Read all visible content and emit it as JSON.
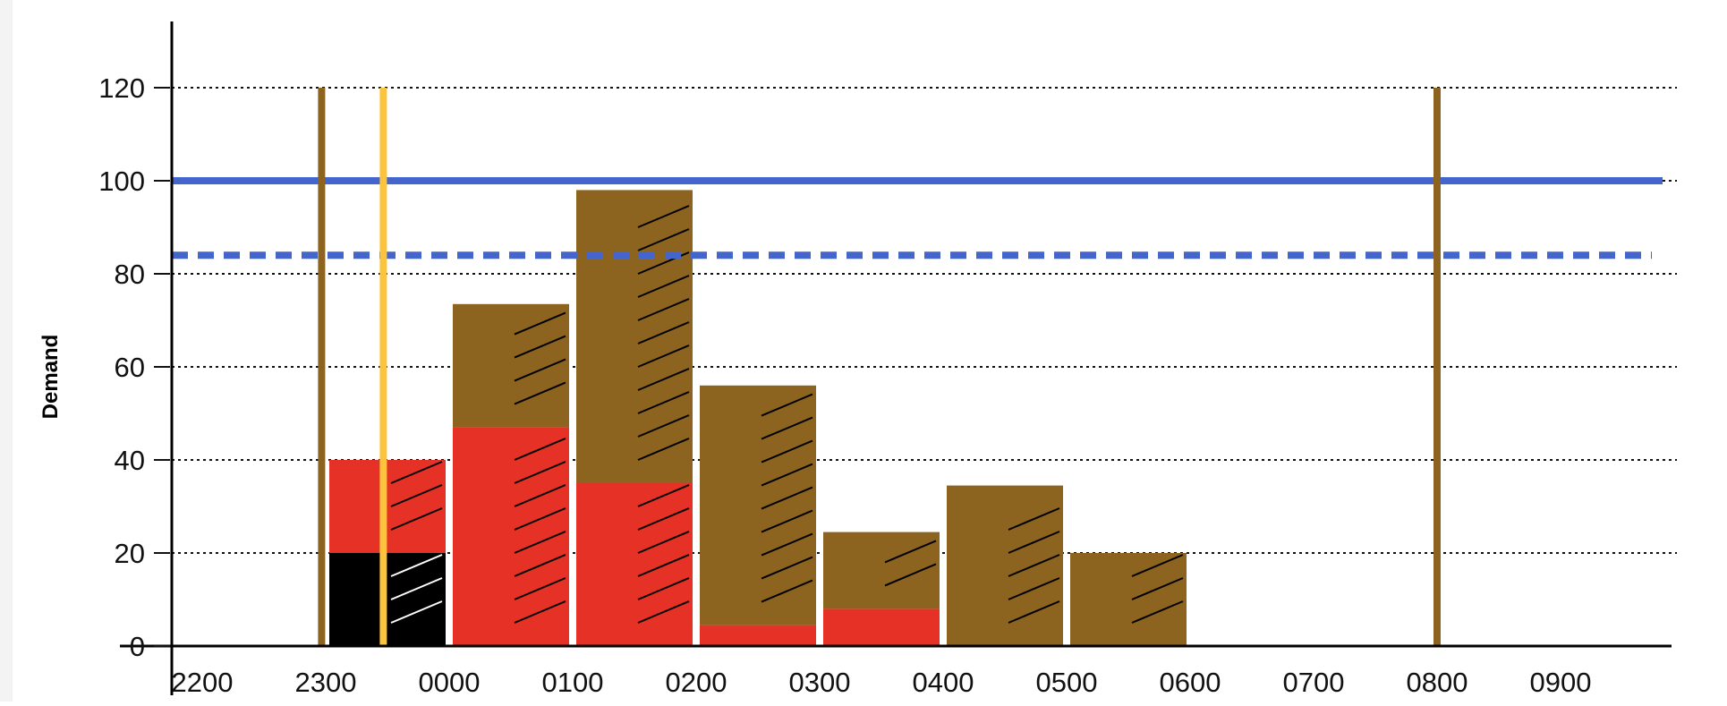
{
  "chart_data": {
    "type": "bar",
    "title": "",
    "xlabel": "",
    "ylabel": "Demand",
    "ylim": [
      0,
      120
    ],
    "y_ticks": [
      "0",
      "20",
      "40",
      "60",
      "80",
      "100",
      "120"
    ],
    "categories": [
      "2200",
      "2300",
      "0000",
      "0100",
      "0200",
      "0300",
      "0400",
      "0500",
      "0600",
      "0700",
      "0800",
      "0900"
    ],
    "grid": "horizontal dotted",
    "legend": "none",
    "stacked_bars": [
      {
        "start": "2300",
        "segments": [
          {
            "value": 20,
            "color": "#000000",
            "hatch_right_half": true,
            "hatch_color": "#ffffff"
          },
          {
            "value": 20,
            "color": "#e53126",
            "hatch_right_half": true,
            "hatch_color": "#000000"
          }
        ]
      },
      {
        "start": "0000",
        "segments": [
          {
            "value": 47,
            "color": "#e53126",
            "hatch_right_half": true,
            "hatch_color": "#000000"
          },
          {
            "value": 26.5,
            "color": "#8c6420",
            "hatch_right_half": true,
            "hatch_color": "#000000"
          }
        ]
      },
      {
        "start": "0100",
        "segments": [
          {
            "value": 35,
            "color": "#e53126",
            "hatch_right_half": true,
            "hatch_color": "#000000"
          },
          {
            "value": 63,
            "color": "#8c6420",
            "hatch_right_half": true,
            "hatch_color": "#000000"
          }
        ]
      },
      {
        "start": "0200",
        "segments": [
          {
            "value": 4.5,
            "color": "#e53126",
            "hatch_right_half": true,
            "hatch_color": "#000000"
          },
          {
            "value": 51.5,
            "color": "#8c6420",
            "hatch_right_half": true,
            "hatch_color": "#000000"
          }
        ]
      },
      {
        "start": "0300",
        "segments": [
          {
            "value": 8,
            "color": "#e53126",
            "hatch_right_half": true,
            "hatch_color": "#000000"
          },
          {
            "value": 16.5,
            "color": "#8c6420",
            "hatch_right_half": true,
            "hatch_color": "#000000"
          }
        ]
      },
      {
        "start": "0400",
        "segments": [
          {
            "value": 34.5,
            "color": "#8c6420",
            "hatch_right_half": true,
            "hatch_color": "#000000"
          }
        ]
      },
      {
        "start": "0500",
        "segments": [
          {
            "value": 20,
            "color": "#8c6420",
            "hatch_right_half": true,
            "hatch_color": "#000000"
          }
        ]
      }
    ],
    "horizontal_lines": [
      {
        "value": 100,
        "style": "solid",
        "color": "#4466cc"
      },
      {
        "value": 84,
        "style": "dashed",
        "color": "#4466cc"
      }
    ],
    "vertical_lines": [
      {
        "time": "2258",
        "value": 120,
        "color": "#8c6420"
      },
      {
        "time": "2328",
        "value": 120,
        "color": "#fcc43c"
      },
      {
        "time": "0800",
        "value": 120,
        "color": "#8c6420"
      }
    ]
  }
}
